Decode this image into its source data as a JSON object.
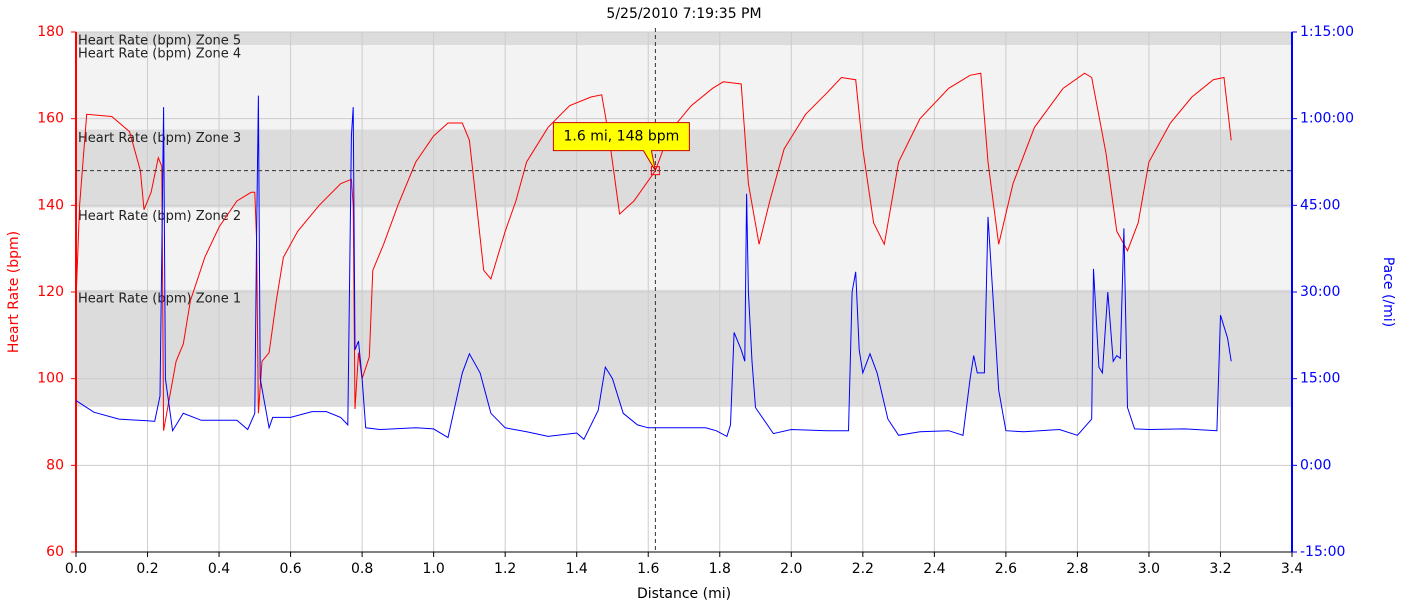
{
  "chart_data": {
    "type": "line",
    "title": "5/25/2010 7:19:35 PM",
    "x_label": "Distance (mi)",
    "y_label": "Heart Rate (bpm)",
    "y2_label": "Pace (/mi)",
    "xlim": [
      0,
      3.4
    ],
    "xticks": [
      {
        "value": 0,
        "label": "0.0"
      },
      0.2,
      0.4,
      0.6,
      0.8,
      {
        "value": 1,
        "label": "1.0"
      },
      1.2,
      1.4,
      1.6,
      1.8,
      {
        "value": 2,
        "label": "2.0"
      },
      2.2,
      2.4,
      2.6,
      2.8,
      {
        "value": 3,
        "label": "3.0"
      },
      3.2,
      3.4
    ],
    "ylim": [
      60,
      180
    ],
    "yticks": [
      60,
      80,
      100,
      120,
      140,
      160,
      180
    ],
    "y2lim": [
      -15,
      75
    ],
    "y2ticks": [
      {
        "value": -15,
        "label": "-15:00"
      },
      {
        "value": 0,
        "label": "0:00"
      },
      {
        "value": 15,
        "label": "15:00"
      },
      {
        "value": 30,
        "label": "30:00"
      },
      {
        "value": 45,
        "label": "45:00"
      },
      {
        "value": 60,
        "label": "1:00:00"
      },
      {
        "value": 75,
        "label": "1:15:00"
      }
    ],
    "grid": true,
    "y_color": "#ff0000",
    "y2_color": "#0000ff",
    "zones": [
      {
        "label": "Heart Rate (bpm) Zone 5",
        "low": 177,
        "high": 180,
        "color": "#dcdcdc"
      },
      {
        "label": "Heart Rate (bpm) Zone 4",
        "low": 157.5,
        "high": 177,
        "color": "#f3f3f3"
      },
      {
        "label": "Heart Rate (bpm) Zone 3",
        "low": 139.5,
        "high": 157.5,
        "color": "#dcdcdc"
      },
      {
        "label": "Heart Rate (bpm) Zone 2",
        "low": 120.5,
        "high": 139.5,
        "color": "#f3f3f3"
      },
      {
        "label": "Heart Rate (bpm) Zone 1",
        "low": 93.5,
        "high": 120.5,
        "color": "#dcdcdc"
      }
    ],
    "crosshair": {
      "x": 1.62,
      "y": 148,
      "label": "1.6 mi, 148 bpm"
    },
    "series": [
      {
        "name": "Heart Rate",
        "color": "#ff0000",
        "x": [
          0,
          0.01,
          0.03,
          0.1,
          0.15,
          0.18,
          0.19,
          0.21,
          0.23,
          0.24,
          0.245,
          0.26,
          0.28,
          0.3,
          0.32,
          0.36,
          0.4,
          0.45,
          0.49,
          0.5,
          0.505,
          0.51,
          0.52,
          0.54,
          0.56,
          0.58,
          0.62,
          0.68,
          0.74,
          0.77,
          0.775,
          0.78,
          0.79,
          0.8,
          0.82,
          0.83,
          0.86,
          0.9,
          0.95,
          1.0,
          1.04,
          1.08,
          1.1,
          1.12,
          1.14,
          1.16,
          1.2,
          1.23,
          1.26,
          1.32,
          1.38,
          1.44,
          1.47,
          1.49,
          1.52,
          1.56,
          1.62,
          1.66,
          1.72,
          1.78,
          1.81,
          1.86,
          1.88,
          1.91,
          1.94,
          1.98,
          2.04,
          2.1,
          2.14,
          2.18,
          2.2,
          2.23,
          2.26,
          2.3,
          2.36,
          2.44,
          2.5,
          2.53,
          2.55,
          2.58,
          2.62,
          2.68,
          2.76,
          2.82,
          2.84,
          2.88,
          2.91,
          2.94,
          2.97,
          3.0,
          3.06,
          3.12,
          3.18,
          3.21,
          3.23
        ],
        "values": [
          118,
          140,
          161,
          160.5,
          157,
          148,
          139,
          143,
          151,
          149,
          88,
          95,
          104,
          108,
          118,
          128,
          135,
          141,
          143,
          143,
          132,
          92,
          104,
          106,
          118,
          128,
          134,
          140,
          145,
          146,
          140,
          93,
          106,
          100,
          105,
          125,
          131,
          140,
          150,
          156,
          159,
          159,
          155,
          140,
          125,
          123,
          134,
          141,
          150,
          158,
          163,
          165,
          165.5,
          156,
          138,
          141,
          148,
          157,
          163,
          167,
          168.5,
          168,
          145,
          131,
          141,
          153,
          161,
          166,
          169.5,
          169,
          153,
          136,
          131,
          150,
          160,
          167,
          170,
          170.5,
          150,
          131,
          145,
          158,
          167,
          170.5,
          169.5,
          152,
          134,
          129.5,
          136,
          150,
          159,
          165,
          169,
          169.5,
          155
        ]
      },
      {
        "name": "Pace",
        "color": "#0000ff",
        "axis": "y2",
        "x": [
          0,
          0.05,
          0.12,
          0.2,
          0.22,
          0.235,
          0.245,
          0.25,
          0.27,
          0.3,
          0.35,
          0.45,
          0.48,
          0.5,
          0.505,
          0.51,
          0.515,
          0.54,
          0.55,
          0.6,
          0.66,
          0.7,
          0.74,
          0.76,
          0.77,
          0.775,
          0.78,
          0.79,
          0.8,
          0.81,
          0.85,
          0.95,
          1.0,
          1.04,
          1.08,
          1.1,
          1.13,
          1.16,
          1.2,
          1.26,
          1.32,
          1.4,
          1.42,
          1.46,
          1.48,
          1.5,
          1.53,
          1.57,
          1.6,
          1.7,
          1.76,
          1.79,
          1.82,
          1.83,
          1.84,
          1.86,
          1.87,
          1.875,
          1.88,
          1.89,
          1.9,
          1.95,
          2.0,
          2.1,
          2.16,
          2.17,
          2.18,
          2.19,
          2.2,
          2.22,
          2.24,
          2.27,
          2.3,
          2.36,
          2.44,
          2.48,
          2.5,
          2.51,
          2.52,
          2.54,
          2.55,
          2.57,
          2.58,
          2.6,
          2.65,
          2.75,
          2.8,
          2.84,
          2.845,
          2.86,
          2.87,
          2.885,
          2.9,
          2.91,
          2.92,
          2.93,
          2.94,
          2.96,
          3.0,
          3.1,
          3.19,
          3.2,
          3.22,
          3.23
        ],
        "values": [
          11.2,
          9.2,
          8,
          7.7,
          7.6,
          12,
          62,
          15,
          6,
          9,
          7.8,
          7.8,
          6.2,
          9,
          40,
          64,
          15,
          6.5,
          8.3,
          8.3,
          9.3,
          9.3,
          8.3,
          7,
          57,
          62,
          20,
          21.5,
          15,
          6.5,
          6.2,
          6.5,
          6.3,
          4.8,
          16,
          19.3,
          16,
          9,
          6.5,
          5.8,
          5,
          5.6,
          4.5,
          9.5,
          17,
          15,
          9,
          7,
          6.5,
          6.5,
          6.5,
          6,
          5,
          7,
          23,
          20,
          18,
          47,
          30,
          18,
          10,
          5.5,
          6.2,
          6,
          6,
          30,
          33.5,
          20,
          16,
          19.3,
          16,
          8,
          5.2,
          5.8,
          6,
          5.2,
          15,
          19,
          16,
          16,
          43,
          23,
          13,
          6,
          5.8,
          6.2,
          5.2,
          8,
          34,
          17,
          16,
          30,
          18,
          19,
          18.5,
          41,
          10,
          6.3,
          6.2,
          6.3,
          6,
          26,
          22,
          18
        ]
      }
    ]
  }
}
